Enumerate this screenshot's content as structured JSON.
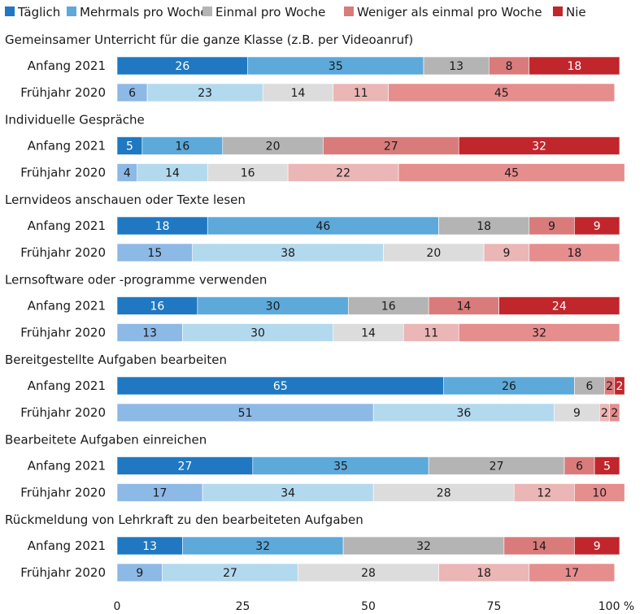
{
  "chart_data": {
    "type": "bar",
    "orientation": "horizontal",
    "stacked": true,
    "xlim": [
      0,
      100
    ],
    "x_ticks": [
      "0",
      "25",
      "50",
      "75",
      "100 %"
    ],
    "legend": [
      {
        "name": "Täglich",
        "color": "#1f78c1"
      },
      {
        "name": "Mehrmals pro Woche",
        "color": "#5ca9da"
      },
      {
        "name": "Einmal pro Woche",
        "color": "#b4b4b4"
      },
      {
        "name": "Weniger als einmal pro Woche",
        "color": "#d97b7b"
      },
      {
        "name": "Nie",
        "color": "#c0262c"
      }
    ],
    "palettes": {
      "Anfang 2021": [
        "#1f78c1",
        "#5ca9da",
        "#b4b4b4",
        "#d97b7b",
        "#c0262c"
      ],
      "Frühjahr 2020": [
        "#8db9e6",
        "#b3d9ee",
        "#dcdcdc",
        "#ebb6b6",
        "#e68d8d"
      ]
    },
    "groups": [
      {
        "title": "Gemeinsamer Unterricht für die ganze Klasse (z.B. per Videoanruf)",
        "rows": [
          {
            "label": "Anfang 2021",
            "values": [
              26,
              35,
              13,
              8,
              18
            ]
          },
          {
            "label": "Frühjahr 2020",
            "values": [
              6,
              23,
              14,
              11,
              45
            ]
          }
        ]
      },
      {
        "title": "Individuelle Gespräche",
        "rows": [
          {
            "label": "Anfang 2021",
            "values": [
              5,
              16,
              20,
              27,
              32
            ]
          },
          {
            "label": "Frühjahr 2020",
            "values": [
              4,
              14,
              16,
              22,
              45
            ]
          }
        ]
      },
      {
        "title": "Lernvideos anschauen oder Texte lesen",
        "rows": [
          {
            "label": "Anfang 2021",
            "values": [
              18,
              46,
              18,
              9,
              9
            ]
          },
          {
            "label": "Frühjahr 2020",
            "values": [
              15,
              38,
              20,
              9,
              18
            ]
          }
        ]
      },
      {
        "title": "Lernsoftware oder -programme verwenden",
        "rows": [
          {
            "label": "Anfang 2021",
            "values": [
              16,
              30,
              16,
              14,
              24
            ]
          },
          {
            "label": "Frühjahr 2020",
            "values": [
              13,
              30,
              14,
              11,
              32
            ]
          }
        ]
      },
      {
        "title": "Bereitgestellte Aufgaben bearbeiten",
        "rows": [
          {
            "label": "Anfang 2021",
            "values": [
              65,
              26,
              6,
              2,
              2
            ]
          },
          {
            "label": "Frühjahr 2020",
            "values": [
              51,
              36,
              9,
              2,
              2
            ]
          }
        ]
      },
      {
        "title": "Bearbeitete Aufgaben einreichen",
        "rows": [
          {
            "label": "Anfang 2021",
            "values": [
              27,
              35,
              27,
              6,
              5
            ]
          },
          {
            "label": "Frühjahr 2020",
            "values": [
              17,
              34,
              28,
              12,
              10
            ]
          }
        ]
      },
      {
        "title": "Rückmeldung von Lehrkraft zu den bearbeiteten Aufgaben",
        "rows": [
          {
            "label": "Anfang 2021",
            "values": [
              13,
              32,
              32,
              14,
              9
            ]
          },
          {
            "label": "Frühjahr 2020",
            "values": [
              9,
              27,
              28,
              18,
              17
            ]
          }
        ]
      }
    ]
  }
}
